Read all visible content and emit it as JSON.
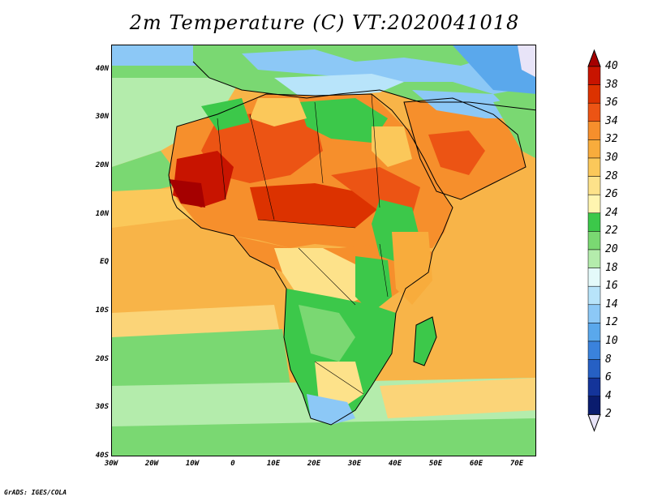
{
  "title": "2m Temperature (C) VT:2020041018",
  "credit": "GrADS: IGES/COLA",
  "lat_labels": [
    "40N",
    "30N",
    "20N",
    "10N",
    "EQ",
    "10S",
    "20S",
    "30S",
    "40S"
  ],
  "lon_labels": [
    "30W",
    "20W",
    "10W",
    "0",
    "10E",
    "20E",
    "30E",
    "40E",
    "50E",
    "60E",
    "70E"
  ],
  "colorbar": {
    "labels": [
      "40",
      "38",
      "36",
      "34",
      "32",
      "30",
      "28",
      "26",
      "24",
      "22",
      "20",
      "18",
      "16",
      "14",
      "12",
      "10",
      "8",
      "6",
      "4",
      "2"
    ],
    "colors": [
      "#a50000",
      "#c81400",
      "#dc3200",
      "#ec5414",
      "#f68f2c",
      "#f8ac3c",
      "#fbc85a",
      "#fde28a",
      "#fff5b0",
      "#3cc84a",
      "#7ad872",
      "#b4ecac",
      "#e4fafa",
      "#b8e4fa",
      "#8cc8f6",
      "#5aa8ec",
      "#3a82dc",
      "#2660c4",
      "#14349a",
      "#0a1c6e",
      "#e8e4f8"
    ]
  },
  "colors": {
    "ocean_tropical": "#f8b448",
    "ocean_mid": "#fbd478",
    "ocean_cool": "#7ad872",
    "ocean_south": "#b4ecac",
    "sahara_hot": "#dc3200",
    "land_warm": "#f68f2c",
    "land_green": "#3cc84a",
    "med_blue": "#8cc8f6",
    "borders": "#000000"
  }
}
